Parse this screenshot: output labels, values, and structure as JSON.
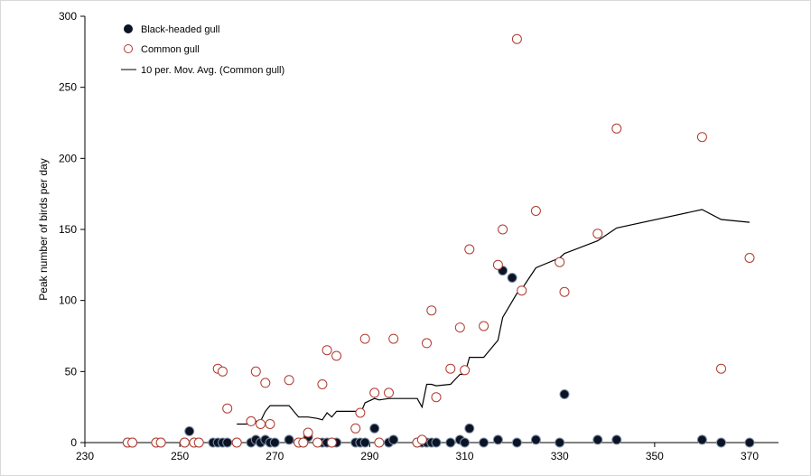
{
  "chart_data": {
    "type": "scatter",
    "xlim": [
      230,
      370
    ],
    "ylim": [
      0,
      300
    ],
    "x_ticks": [
      230,
      250,
      270,
      290,
      310,
      330,
      350,
      370
    ],
    "y_ticks": [
      0,
      50,
      100,
      150,
      200,
      250,
      300
    ],
    "ylabel": "Peak number of birds per day",
    "xlabel": "",
    "grid": false,
    "legend_position": "top-left",
    "series": [
      {
        "name": "Black-headed gull",
        "kind": "scatter",
        "marker": "filled-circle",
        "color": "#0b1424",
        "points": [
          [
            239,
            0
          ],
          [
            240,
            0
          ],
          [
            245,
            0
          ],
          [
            246,
            0
          ],
          [
            251,
            0
          ],
          [
            252,
            8
          ],
          [
            253,
            0
          ],
          [
            254,
            0
          ],
          [
            257,
            0
          ],
          [
            258,
            0
          ],
          [
            259,
            0
          ],
          [
            260,
            0
          ],
          [
            262,
            0
          ],
          [
            265,
            0
          ],
          [
            266,
            2
          ],
          [
            267,
            0
          ],
          [
            268,
            2
          ],
          [
            269,
            0
          ],
          [
            270,
            0
          ],
          [
            273,
            2
          ],
          [
            275,
            0
          ],
          [
            276,
            0
          ],
          [
            277,
            4
          ],
          [
            280,
            0
          ],
          [
            281,
            0
          ],
          [
            282,
            0
          ],
          [
            283,
            0
          ],
          [
            287,
            0
          ],
          [
            288,
            0
          ],
          [
            289,
            0
          ],
          [
            291,
            10
          ],
          [
            294,
            0
          ],
          [
            295,
            2
          ],
          [
            300,
            0
          ],
          [
            301,
            0
          ],
          [
            302,
            0
          ],
          [
            303,
            0
          ],
          [
            304,
            0
          ],
          [
            307,
            0
          ],
          [
            309,
            2
          ],
          [
            310,
            0
          ],
          [
            311,
            10
          ],
          [
            314,
            0
          ],
          [
            317,
            2
          ],
          [
            318,
            121
          ],
          [
            320,
            116
          ],
          [
            321,
            0
          ],
          [
            325,
            2
          ],
          [
            330,
            0
          ],
          [
            331,
            34
          ],
          [
            338,
            2
          ],
          [
            342,
            2
          ],
          [
            360,
            2
          ],
          [
            364,
            0
          ],
          [
            370,
            0
          ]
        ]
      },
      {
        "name": "Common gull",
        "kind": "scatter",
        "marker": "open-circle",
        "color": "#b03a2e",
        "points": [
          [
            239,
            0
          ],
          [
            240,
            0
          ],
          [
            245,
            0
          ],
          [
            246,
            0
          ],
          [
            251,
            0
          ],
          [
            253,
            0
          ],
          [
            254,
            0
          ],
          [
            258,
            52
          ],
          [
            259,
            50
          ],
          [
            260,
            24
          ],
          [
            262,
            0
          ],
          [
            265,
            15
          ],
          [
            266,
            50
          ],
          [
            267,
            13
          ],
          [
            268,
            42
          ],
          [
            269,
            13
          ],
          [
            273,
            44
          ],
          [
            275,
            0
          ],
          [
            276,
            0
          ],
          [
            277,
            7
          ],
          [
            279,
            0
          ],
          [
            280,
            41
          ],
          [
            281,
            65
          ],
          [
            282,
            0
          ],
          [
            283,
            61
          ],
          [
            287,
            10
          ],
          [
            288,
            21
          ],
          [
            289,
            73
          ],
          [
            291,
            35
          ],
          [
            292,
            0
          ],
          [
            294,
            35
          ],
          [
            295,
            73
          ],
          [
            300,
            0
          ],
          [
            301,
            2
          ],
          [
            302,
            70
          ],
          [
            303,
            93
          ],
          [
            304,
            32
          ],
          [
            307,
            52
          ],
          [
            309,
            81
          ],
          [
            310,
            51
          ],
          [
            311,
            136
          ],
          [
            314,
            82
          ],
          [
            317,
            125
          ],
          [
            318,
            150
          ],
          [
            321,
            284
          ],
          [
            322,
            107
          ],
          [
            325,
            163
          ],
          [
            330,
            127
          ],
          [
            331,
            106
          ],
          [
            338,
            147
          ],
          [
            342,
            221
          ],
          [
            360,
            215
          ],
          [
            364,
            52
          ],
          [
            370,
            130
          ]
        ]
      },
      {
        "name": "10 per. Mov. Avg. (Common gull)",
        "kind": "line",
        "color": "#000000",
        "points": [
          [
            262,
            13
          ],
          [
            265,
            13
          ],
          [
            266,
            15
          ],
          [
            267,
            15
          ],
          [
            268,
            22
          ],
          [
            269,
            26
          ],
          [
            273,
            26
          ],
          [
            275,
            18
          ],
          [
            276,
            18
          ],
          [
            277,
            18
          ],
          [
            279,
            17
          ],
          [
            280,
            16
          ],
          [
            281,
            21
          ],
          [
            282,
            18
          ],
          [
            283,
            22
          ],
          [
            287,
            22
          ],
          [
            288,
            20
          ],
          [
            289,
            28
          ],
          [
            291,
            31
          ],
          [
            292,
            30
          ],
          [
            294,
            31
          ],
          [
            295,
            31
          ],
          [
            300,
            31
          ],
          [
            301,
            25
          ],
          [
            302,
            41
          ],
          [
            303,
            41
          ],
          [
            304,
            40
          ],
          [
            307,
            41
          ],
          [
            309,
            48
          ],
          [
            310,
            48
          ],
          [
            311,
            60
          ],
          [
            314,
            60
          ],
          [
            317,
            72
          ],
          [
            318,
            88
          ],
          [
            321,
            105
          ],
          [
            322,
            108
          ],
          [
            325,
            123
          ],
          [
            330,
            130
          ],
          [
            331,
            133
          ],
          [
            338,
            142
          ],
          [
            342,
            151
          ],
          [
            360,
            164
          ],
          [
            364,
            157
          ],
          [
            370,
            155
          ]
        ]
      }
    ]
  }
}
